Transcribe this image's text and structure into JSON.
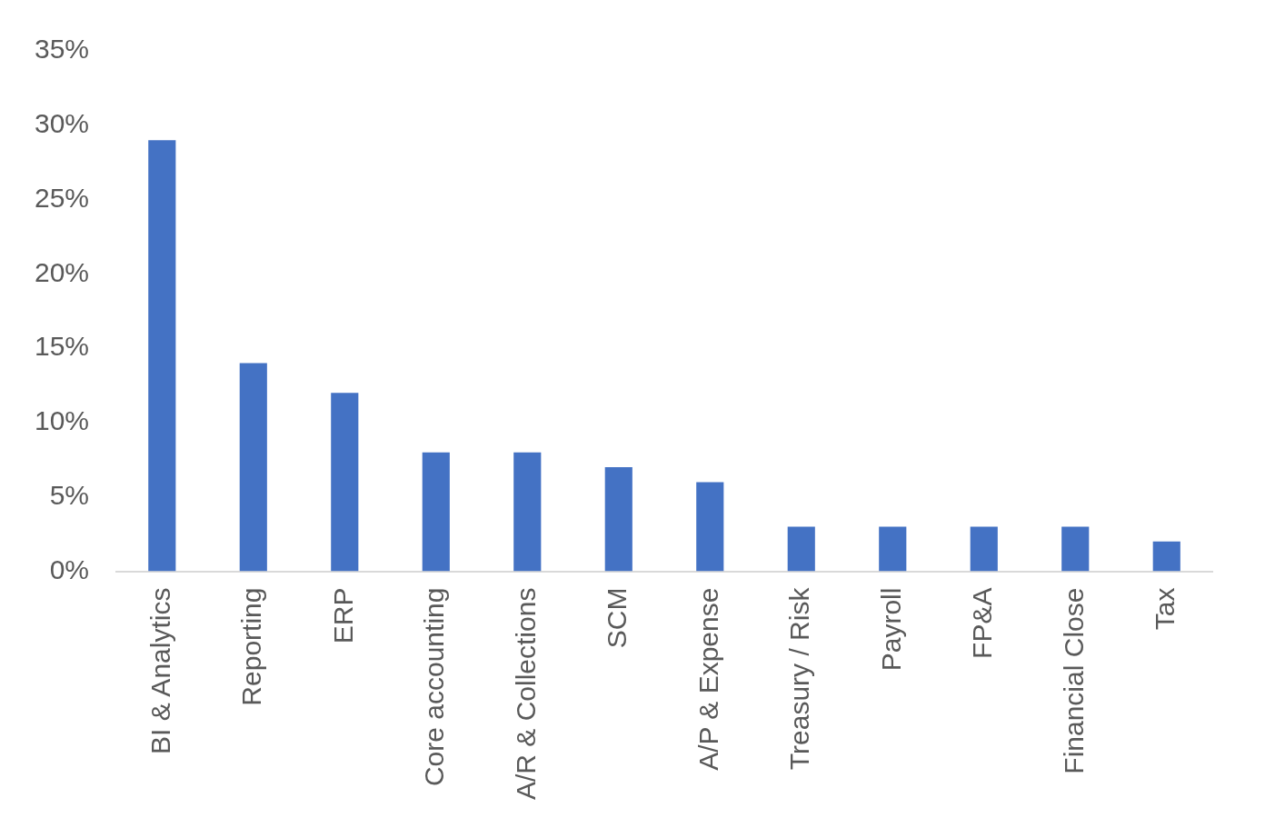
{
  "chart_data": {
    "type": "bar",
    "categories": [
      "BI & Analytics",
      "Reporting",
      "ERP",
      "Core accounting",
      "A/R & Collections",
      "SCM",
      "A/P & Expense",
      "Treasury / Risk",
      "Payroll",
      "FP&A",
      "Financial Close",
      "Tax"
    ],
    "values": [
      29,
      14,
      12,
      8,
      8,
      7,
      6,
      3,
      3,
      3,
      3,
      2
    ],
    "color": "#4472c4",
    "ylim": [
      0,
      35
    ],
    "yticks": [
      {
        "value": 0,
        "label": "0%"
      },
      {
        "value": 5,
        "label": "5%"
      },
      {
        "value": 10,
        "label": "10%"
      },
      {
        "value": 15,
        "label": "15%"
      },
      {
        "value": 20,
        "label": "20%"
      },
      {
        "value": 25,
        "label": "25%"
      },
      {
        "value": 30,
        "label": "30%"
      },
      {
        "value": 35,
        "label": "35%"
      }
    ],
    "grid": false,
    "legend": false
  }
}
